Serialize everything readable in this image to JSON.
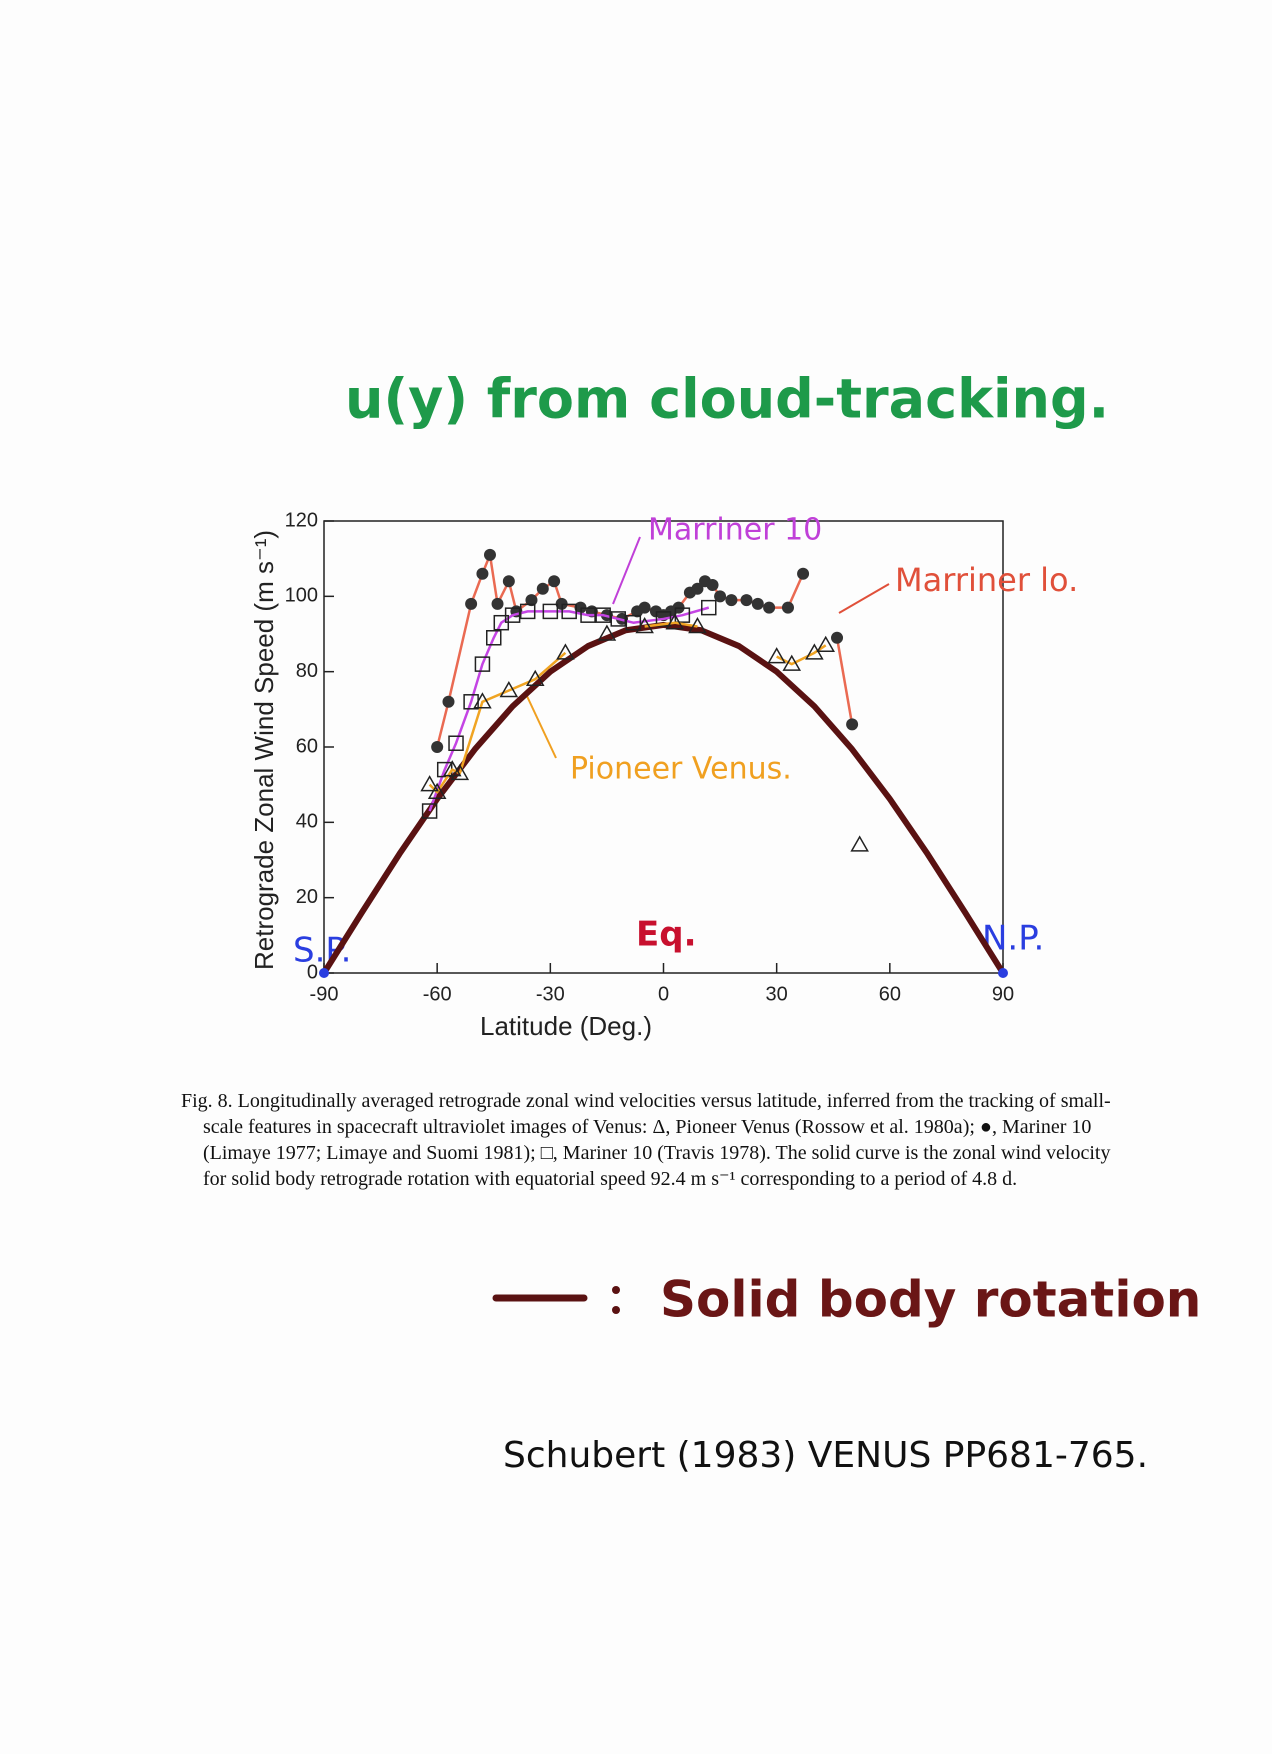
{
  "header": {
    "title": "u(y) from cloud-tracking."
  },
  "chart_data": {
    "type": "line",
    "xlabel": "Latitude (Deg.)",
    "ylabel": "Retrograde Zonal Wind Speed (m s⁻¹)",
    "xlim": [
      -90,
      90
    ],
    "ylim": [
      0,
      120
    ],
    "xticks": [
      -90,
      -60,
      -30,
      0,
      30,
      60,
      90
    ],
    "yticks": [
      0,
      20,
      40,
      60,
      80,
      100,
      120
    ],
    "annotations": {
      "south_pole": "S.P.",
      "north_pole": "N.P.",
      "equator": "Eq."
    },
    "series": [
      {
        "name": "Solid body rotation",
        "color": "#5a1212",
        "marker": "none",
        "x": [
          -90,
          -80,
          -70,
          -60,
          -50,
          -40,
          -30,
          -20,
          -10,
          0,
          10,
          20,
          30,
          40,
          50,
          60,
          70,
          80,
          90
        ],
        "values": [
          0,
          16.0,
          31.6,
          46.2,
          59.4,
          70.8,
          80.0,
          86.8,
          91.0,
          92.4,
          91.0,
          86.8,
          80.0,
          70.8,
          59.4,
          46.2,
          31.6,
          16.0,
          0
        ]
      },
      {
        "name": "Marriner lo.",
        "color": "#ea6a52",
        "marker": "circle",
        "x": [
          -60,
          -57,
          -51,
          -48,
          -46,
          -44,
          -41,
          -39,
          -35,
          -32,
          -29,
          -27,
          -22,
          -19,
          -15,
          -11,
          -7,
          -5,
          -2,
          0,
          2,
          4,
          7,
          9,
          11,
          13,
          15,
          18,
          22,
          25,
          28,
          33,
          37,
          46,
          50
        ],
        "values": [
          60,
          72,
          98,
          106,
          111,
          98,
          104,
          96,
          99,
          102,
          104,
          98,
          97,
          96,
          95,
          94,
          96,
          97,
          96,
          95,
          96,
          97,
          101,
          102,
          104,
          103,
          100,
          99,
          99,
          98,
          97,
          97,
          106,
          89,
          66
        ]
      },
      {
        "name": "Marriner 10",
        "color": "#c444e4",
        "marker": "square",
        "x": [
          -62,
          -58,
          -55,
          -51,
          -48,
          -45,
          -43,
          -40,
          -36,
          -30,
          -25,
          -20,
          -16,
          -12,
          -8,
          0,
          5,
          12
        ],
        "values": [
          43,
          54,
          61,
          72,
          82,
          89,
          93,
          95,
          96,
          96,
          96,
          95,
          95,
          94,
          93,
          94,
          95,
          97
        ]
      },
      {
        "name": "Pioneer Venus.",
        "color": "#f0a422",
        "marker": "triangle",
        "x": [
          -62,
          -60,
          -56,
          -54,
          -48,
          -41,
          -34,
          -26,
          -15,
          -5,
          3,
          9,
          30,
          34,
          40,
          43,
          52
        ],
        "values": [
          50,
          48,
          54,
          53,
          72,
          75,
          78,
          85,
          90,
          92,
          93,
          92,
          84,
          82,
          85,
          87,
          34
        ]
      }
    ]
  },
  "caption": "Fig. 8. Longitudinally averaged retrograde zonal wind velocities versus latitude, inferred from the tracking of small-scale features in spacecraft ultraviolet images of Venus: Δ, Pioneer Venus (Rossow et al. 1980a); ●, Mariner 10 (Limaye 1977; Limaye and Suomi 1981); □, Mariner 10 (Travis 1978). The solid curve is the zonal wind velocity for solid body retrograde rotation with equatorial speed 92.4 m s⁻¹ corresponding to a period of 4.8 d.",
  "reference": "Schubert (1983) VENUS PP681-765."
}
